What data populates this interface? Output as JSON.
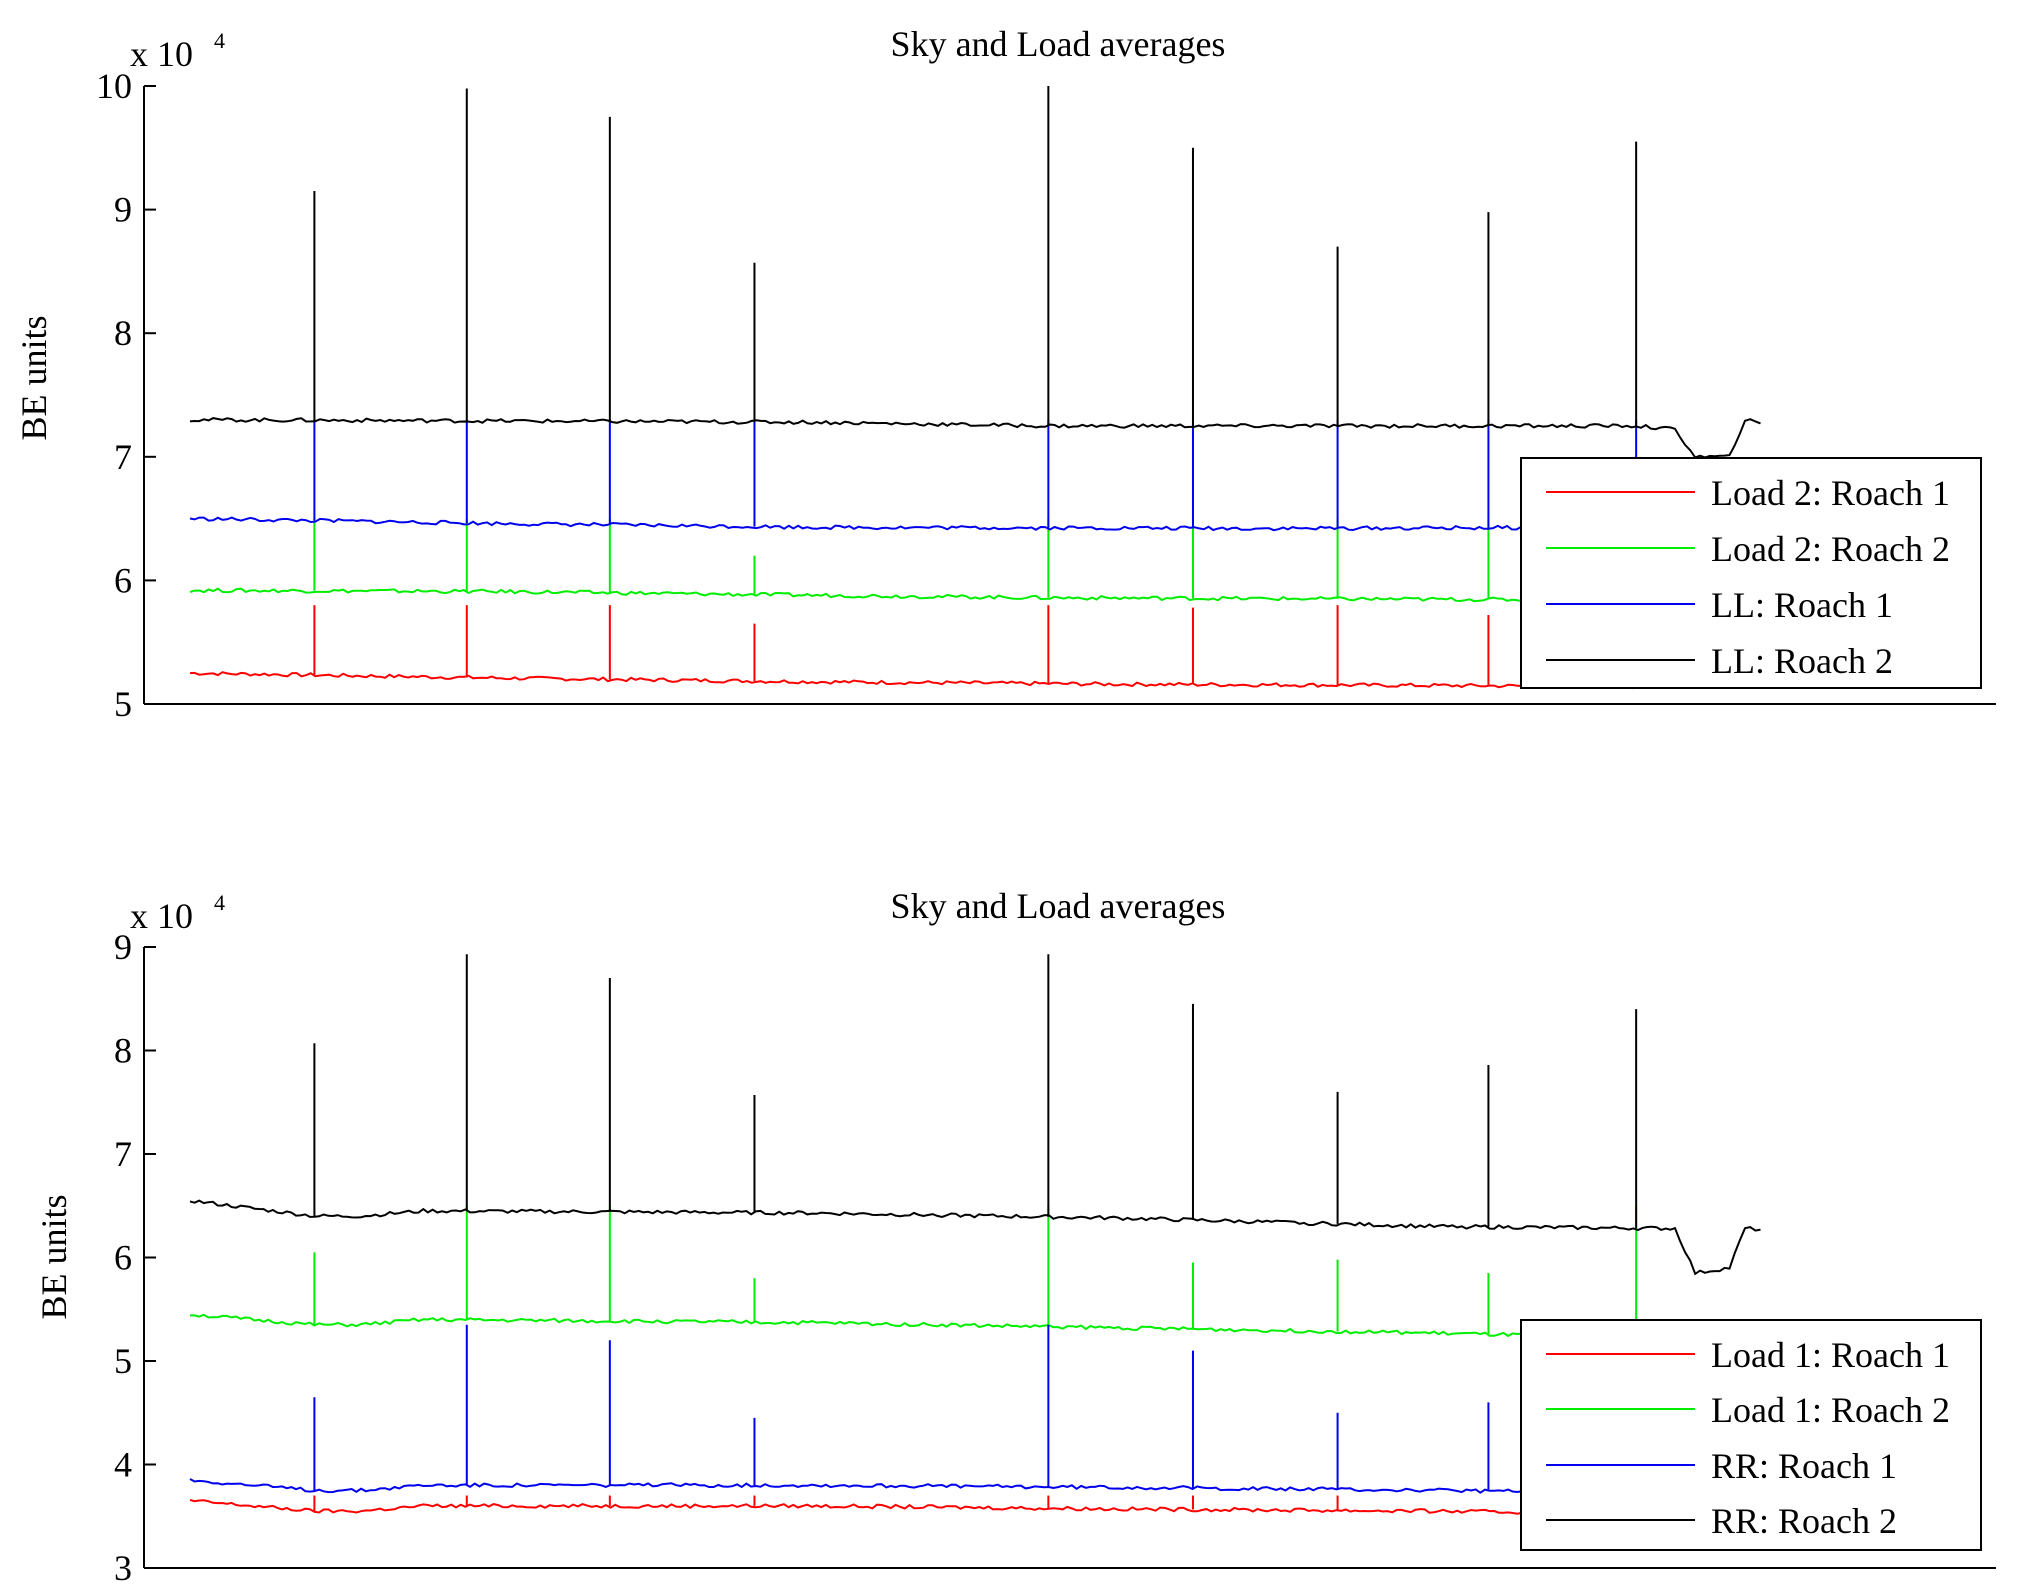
{
  "chart_data": [
    {
      "type": "line",
      "title": "Sky and Load averages",
      "ylabel": "BE units",
      "xlabel": "",
      "y_multiplier": {
        "base": "x 10",
        "exponent": "4"
      },
      "ylim": [
        5,
        10
      ],
      "yticks": [
        "5",
        "6",
        "7",
        "8",
        "9",
        "10"
      ],
      "x_range": [
        0,
        1000
      ],
      "legend": "right-lower",
      "series": [
        {
          "name": "Load 2: Roach 1",
          "color": "#ff0000",
          "baseline": [
            [
              0,
              5.25
            ],
            [
              200,
              5.21
            ],
            [
              400,
              5.18
            ],
            [
              600,
              5.16
            ],
            [
              800,
              5.15
            ],
            [
              940,
              5.14
            ]
          ],
          "spikes": [
            [
              80,
              5.8
            ],
            [
              178,
              5.8
            ],
            [
              270,
              5.8
            ],
            [
              363,
              5.65
            ],
            [
              552,
              5.8
            ],
            [
              645,
              5.78
            ],
            [
              738,
              5.8
            ],
            [
              835,
              5.72
            ]
          ]
        },
        {
          "name": "Load 2: Roach 2",
          "color": "#00ee00",
          "baseline": [
            [
              0,
              5.92
            ],
            [
              200,
              5.91
            ],
            [
              400,
              5.88
            ],
            [
              550,
              5.86
            ],
            [
              940,
              5.84
            ]
          ],
          "spikes": [
            [
              80,
              6.5
            ],
            [
              178,
              6.5
            ],
            [
              270,
              6.5
            ],
            [
              363,
              6.2
            ],
            [
              552,
              6.5
            ],
            [
              645,
              6.5
            ],
            [
              738,
              6.5
            ],
            [
              835,
              6.5
            ]
          ]
        },
        {
          "name": "LL: Roach 1",
          "color": "#0000ee",
          "baseline": [
            [
              0,
              6.5
            ],
            [
              200,
              6.46
            ],
            [
              400,
              6.43
            ],
            [
              700,
              6.42
            ],
            [
              940,
              6.43
            ]
          ],
          "spikes": [
            [
              80,
              7.3
            ],
            [
              178,
              7.3
            ],
            [
              270,
              7.3
            ],
            [
              363,
              7.3
            ],
            [
              552,
              7.3
            ],
            [
              645,
              7.3
            ],
            [
              738,
              7.3
            ],
            [
              835,
              7.3
            ],
            [
              930,
              7.3
            ]
          ]
        },
        {
          "name": "LL: Roach 2",
          "color": "#000000",
          "baseline": [
            [
              0,
              7.3
            ],
            [
              200,
              7.29
            ],
            [
              400,
              7.28
            ],
            [
              550,
              7.25
            ],
            [
              930,
              7.25
            ],
            [
              955,
              7.22
            ],
            [
              968,
              7.0
            ],
            [
              990,
              7.0
            ],
            [
              1000,
              7.3
            ],
            [
              1010,
              7.27
            ]
          ],
          "spikes": [
            [
              80,
              9.15
            ],
            [
              178,
              9.98
            ],
            [
              270,
              9.75
            ],
            [
              363,
              8.57
            ],
            [
              552,
              10.0
            ],
            [
              645,
              9.5
            ],
            [
              738,
              8.7
            ],
            [
              835,
              8.98
            ],
            [
              930,
              9.55
            ]
          ]
        }
      ]
    },
    {
      "type": "line",
      "title": "Sky and Load averages",
      "ylabel": "BE units",
      "xlabel": "",
      "y_multiplier": {
        "base": "x 10",
        "exponent": "4"
      },
      "ylim": [
        3,
        9
      ],
      "yticks": [
        "3",
        "4",
        "5",
        "6",
        "7",
        "8",
        "9"
      ],
      "x_range": [
        0,
        1000
      ],
      "legend": "right-lower",
      "series": [
        {
          "name": "Load 1: Roach 1",
          "color": "#ff0000",
          "baseline": [
            [
              0,
              3.65
            ],
            [
              80,
              3.55
            ],
            [
              110,
              3.55
            ],
            [
              150,
              3.6
            ],
            [
              400,
              3.6
            ],
            [
              600,
              3.57
            ],
            [
              800,
              3.55
            ],
            [
              940,
              3.52
            ]
          ],
          "spikes": [
            [
              80,
              3.7
            ],
            [
              178,
              3.7
            ],
            [
              270,
              3.7
            ],
            [
              363,
              3.7
            ],
            [
              552,
              3.7
            ],
            [
              645,
              3.7
            ],
            [
              738,
              3.7
            ]
          ]
        },
        {
          "name": "Load 1: Roach 2",
          "color": "#00ee00",
          "baseline": [
            [
              0,
              5.45
            ],
            [
              80,
              5.35
            ],
            [
              110,
              5.35
            ],
            [
              150,
              5.4
            ],
            [
              400,
              5.37
            ],
            [
              600,
              5.32
            ],
            [
              800,
              5.27
            ],
            [
              940,
              5.22
            ]
          ],
          "spikes": [
            [
              80,
              6.05
            ],
            [
              178,
              6.5
            ],
            [
              270,
              6.5
            ],
            [
              363,
              5.8
            ],
            [
              552,
              6.5
            ],
            [
              645,
              5.95
            ],
            [
              738,
              5.98
            ],
            [
              835,
              5.85
            ],
            [
              930,
              6.5
            ]
          ]
        },
        {
          "name": "RR: Roach 1",
          "color": "#0000ee",
          "baseline": [
            [
              0,
              3.85
            ],
            [
              80,
              3.75
            ],
            [
              110,
              3.75
            ],
            [
              150,
              3.8
            ],
            [
              400,
              3.8
            ],
            [
              600,
              3.78
            ],
            [
              800,
              3.75
            ],
            [
              940,
              3.72
            ]
          ],
          "spikes": [
            [
              80,
              4.65
            ],
            [
              178,
              5.35
            ],
            [
              270,
              5.2
            ],
            [
              363,
              4.45
            ],
            [
              552,
              5.35
            ],
            [
              645,
              5.1
            ],
            [
              738,
              4.5
            ],
            [
              835,
              4.6
            ]
          ]
        },
        {
          "name": "RR: Roach 2",
          "color": "#000000",
          "baseline": [
            [
              0,
              6.55
            ],
            [
              80,
              6.4
            ],
            [
              110,
              6.4
            ],
            [
              150,
              6.45
            ],
            [
              400,
              6.43
            ],
            [
              600,
              6.38
            ],
            [
              800,
              6.3
            ],
            [
              955,
              6.28
            ],
            [
              968,
              5.85
            ],
            [
              990,
              5.9
            ],
            [
              1000,
              6.28
            ],
            [
              1010,
              6.27
            ]
          ],
          "spikes": [
            [
              80,
              8.07
            ],
            [
              178,
              8.93
            ],
            [
              270,
              8.7
            ],
            [
              363,
              7.57
            ],
            [
              552,
              8.93
            ],
            [
              645,
              8.45
            ],
            [
              738,
              7.6
            ],
            [
              835,
              7.86
            ],
            [
              930,
              8.4
            ]
          ]
        }
      ]
    }
  ]
}
